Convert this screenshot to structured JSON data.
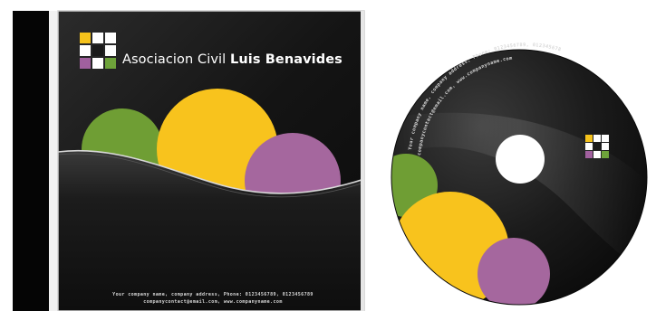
{
  "brand": {
    "title_regular": "Asociacion Civil",
    "title_bold": "Luis Benavides",
    "logo_colors": [
      "#f5c21b",
      "#ffffff",
      "#a1609e",
      "#6ea33a"
    ]
  },
  "cover": {
    "background": "#1a1a1a",
    "circle_colors": {
      "green": "#6f9e34",
      "yellow": "#f8c31d",
      "purple": "#a5679e"
    },
    "footer_line1": "Your company name, company address, Phone: 0123456789, 0123456789",
    "footer_line2": "companycontact@email.com, www.companyname.com"
  },
  "disc": {
    "arc_line1": "Your company name, company address, Phone: 0123456789, 0123456789",
    "arc_line2": "companycontact@email.com, www.companyname.com"
  }
}
